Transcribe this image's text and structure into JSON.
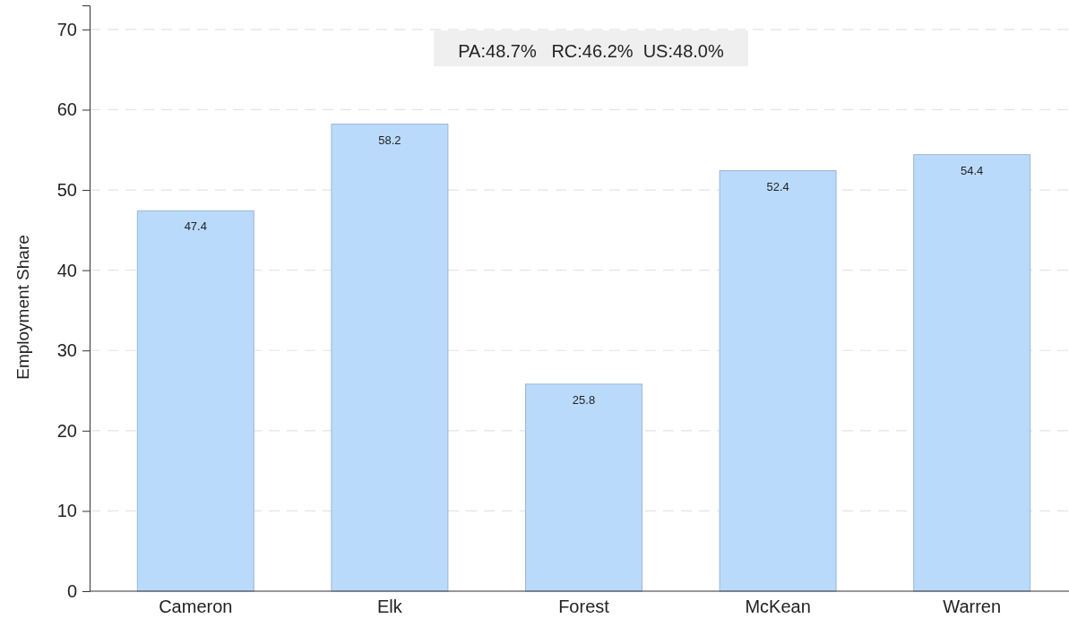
{
  "chart_data": {
    "type": "bar",
    "categories": [
      "Cameron",
      "Elk",
      "Forest",
      "McKean",
      "Warren"
    ],
    "values": [
      47.4,
      58.2,
      25.8,
      52.4,
      54.4
    ],
    "color": "#badafc",
    "ylabel": "Employment Share",
    "ylim": [
      0,
      73
    ],
    "yticks": [
      0,
      10,
      20,
      30,
      40,
      50,
      60,
      70
    ],
    "grid": "y",
    "data_labels": true,
    "annotations": [
      "PA:48.7%   RC:46.2%  US:48.0%"
    ]
  }
}
